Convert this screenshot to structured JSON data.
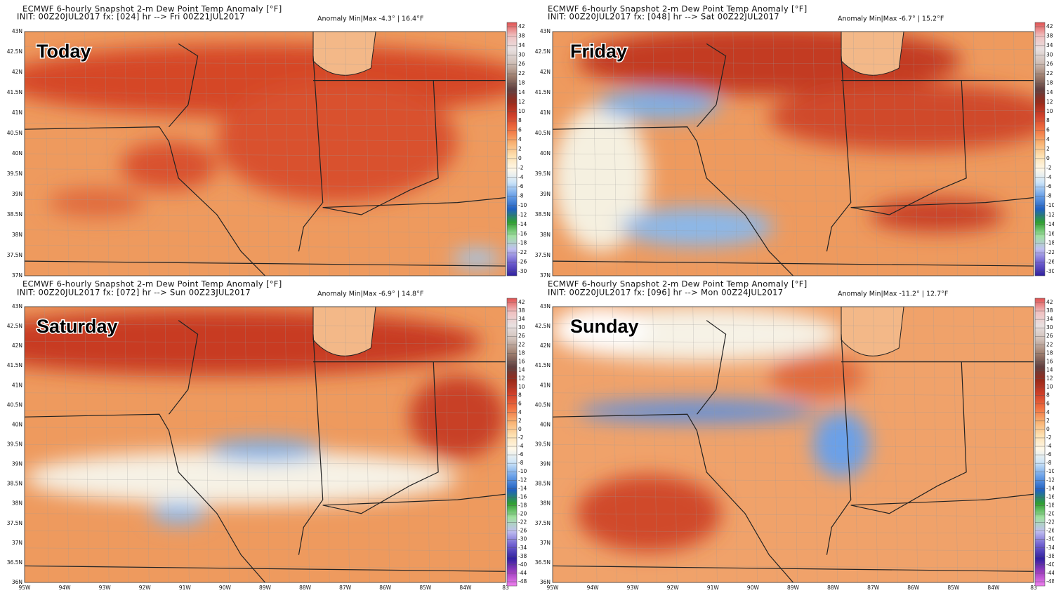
{
  "panels": [
    {
      "title": "ECMWF 6-hourly Snapshot 2-m Dew Point Temp Anomaly [°F]",
      "init": "INIT: 00Z20JUL2017 fx: [024] hr --> Fri 00Z21JUL2017",
      "anomaly": "Anomaly Min|Max -4.3° | 16.4°F",
      "label": "Today",
      "lat_labels": [
        "43N",
        "42.5N",
        "42N",
        "41.5N",
        "41N",
        "40.5N",
        "40N",
        "39.5N",
        "39N",
        "38.5N",
        "38N",
        "37.5N",
        "37N"
      ],
      "colorbar_labels": [
        "42",
        "38",
        "34",
        "30",
        "26",
        "22",
        "18",
        "14",
        "12",
        "10",
        "8",
        "6",
        "4",
        "2",
        "0",
        "-2",
        "-4",
        "-6",
        "-8",
        "-10",
        "-12",
        "-14",
        "-16",
        "-18",
        "-22",
        "-26",
        "-30"
      ]
    },
    {
      "title": "ECMWF 6-hourly Snapshot 2-m Dew Point Temp Anomaly [°F]",
      "init": "INIT: 00Z20JUL2017 fx: [048] hr --> Sat 00Z22JUL2017",
      "anomaly": "Anomaly Min|Max -6.7° | 15.2°F",
      "label": "Friday",
      "lat_labels": [
        "43N",
        "42.5N",
        "42N",
        "41.5N",
        "41N",
        "40.5N",
        "40N",
        "39.5N",
        "39N",
        "38.5N",
        "38N",
        "37.5N",
        "37N"
      ],
      "colorbar_labels": [
        "42",
        "38",
        "34",
        "30",
        "26",
        "22",
        "18",
        "14",
        "12",
        "10",
        "8",
        "6",
        "4",
        "2",
        "0",
        "-2",
        "-4",
        "-6",
        "-8",
        "-10",
        "-12",
        "-14",
        "-16",
        "-18",
        "-22",
        "-26",
        "-30"
      ]
    },
    {
      "title": "ECMWF 6-hourly Snapshot 2-m Dew Point Temp Anomaly [°F]",
      "init": "INIT: 00Z20JUL2017 fx: [072] hr --> Sun 00Z23JUL2017",
      "anomaly": "Anomaly Min|Max -6.9° | 14.8°F",
      "label": "Saturday",
      "lat_labels": [
        "43N",
        "42.5N",
        "42N",
        "41.5N",
        "41N",
        "40.5N",
        "40N",
        "39.5N",
        "39N",
        "38.5N",
        "38N",
        "37.5N",
        "37N",
        "36.5N",
        "36N"
      ],
      "lon_labels": [
        "95W",
        "94W",
        "93W",
        "92W",
        "91W",
        "90W",
        "89W",
        "88W",
        "87W",
        "86W",
        "85W",
        "84W",
        "83"
      ],
      "colorbar_labels": [
        "42",
        "38",
        "34",
        "30",
        "26",
        "22",
        "18",
        "16",
        "14",
        "12",
        "10",
        "8",
        "6",
        "4",
        "2",
        "0",
        "-2",
        "-4",
        "-6",
        "-8",
        "-10",
        "-12",
        "-14",
        "-16",
        "-18",
        "-20",
        "-22",
        "-26",
        "-30",
        "-34",
        "-38",
        "-40",
        "-44",
        "-48"
      ]
    },
    {
      "title": "ECMWF 6-hourly Snapshot 2-m Dew Point Temp Anomaly [°F]",
      "init": "INIT: 00Z20JUL2017 fx: [096] hr --> Mon 00Z24JUL2017",
      "anomaly": "Anomaly Min|Max -11.2° | 12.7°F",
      "label": "Sunday",
      "lat_labels": [
        "43N",
        "42.5N",
        "42N",
        "41.5N",
        "41N",
        "40.5N",
        "40N",
        "39.5N",
        "39N",
        "38.5N",
        "38N",
        "37.5N",
        "37N",
        "36.5N",
        "36N"
      ],
      "lon_labels": [
        "95W",
        "94W",
        "93W",
        "92W",
        "91W",
        "90W",
        "89W",
        "88W",
        "87W",
        "86W",
        "85W",
        "84W",
        "83"
      ],
      "colorbar_labels": [
        "42",
        "38",
        "34",
        "30",
        "26",
        "22",
        "18",
        "16",
        "14",
        "12",
        "10",
        "8",
        "6",
        "4",
        "2",
        "0",
        "-2",
        "-4",
        "-6",
        "-8",
        "-10",
        "-12",
        "-14",
        "-16",
        "-18",
        "-20",
        "-22",
        "-26",
        "-30",
        "-34",
        "-38",
        "-40",
        "-44",
        "-48"
      ]
    }
  ]
}
